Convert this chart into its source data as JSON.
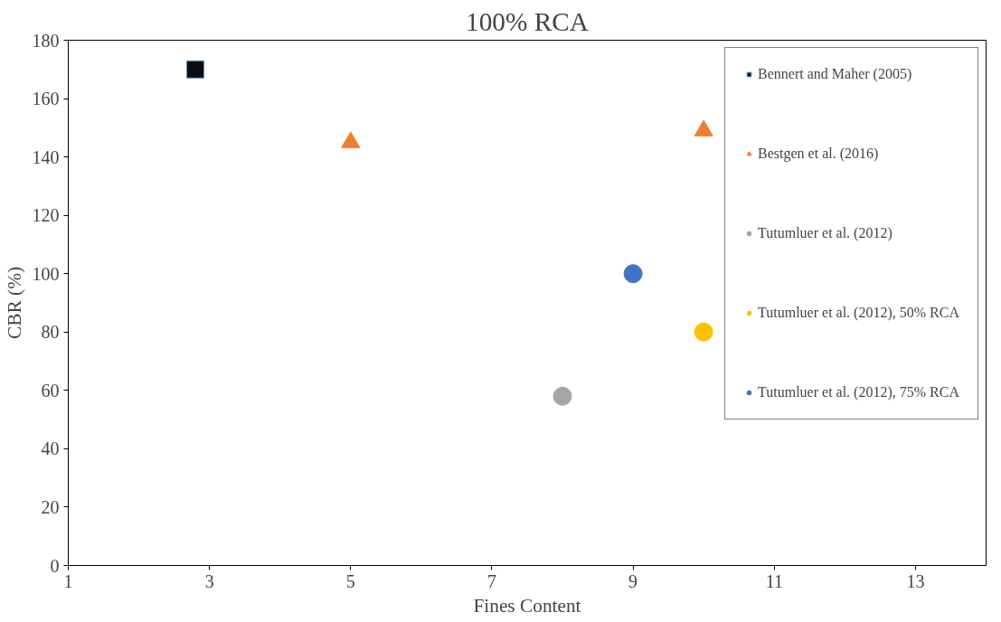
{
  "chart_data": {
    "type": "scatter",
    "title": "100% RCA",
    "xlabel": "Fines Content",
    "ylabel": "CBR (%)",
    "xlim": [
      1,
      14
    ],
    "xticks": [
      1,
      3,
      5,
      7,
      9,
      11,
      13
    ],
    "ylim": [
      0,
      180
    ],
    "yticks": [
      0,
      20,
      40,
      60,
      80,
      100,
      120,
      140,
      160,
      180
    ],
    "grid": false,
    "legend": "right",
    "series": [
      {
        "name": "Bennert and Maher (2005)",
        "color": "#0d0d0d",
        "marker": "square",
        "x": [
          2.8
        ],
        "values": [
          170
        ]
      },
      {
        "name": "Bestgen et al. (2016)",
        "color": "#ed7d31",
        "marker": "triangle",
        "x": [
          5,
          10
        ],
        "values": [
          145,
          149
        ]
      },
      {
        "name": "Tutumluer et al. (2012)",
        "color": "#a5a5a5",
        "marker": "circle",
        "x": [
          8
        ],
        "values": [
          58
        ]
      },
      {
        "name": "Tutumluer et al. (2012), 50% RCA",
        "color": "#ffc000",
        "marker": "circle",
        "x": [
          10
        ],
        "values": [
          80
        ]
      },
      {
        "name": "Tutumluer et al. (2012), 75% RCA",
        "color": "#4472c4",
        "marker": "circle",
        "x": [
          9
        ],
        "values": [
          100
        ]
      }
    ]
  }
}
